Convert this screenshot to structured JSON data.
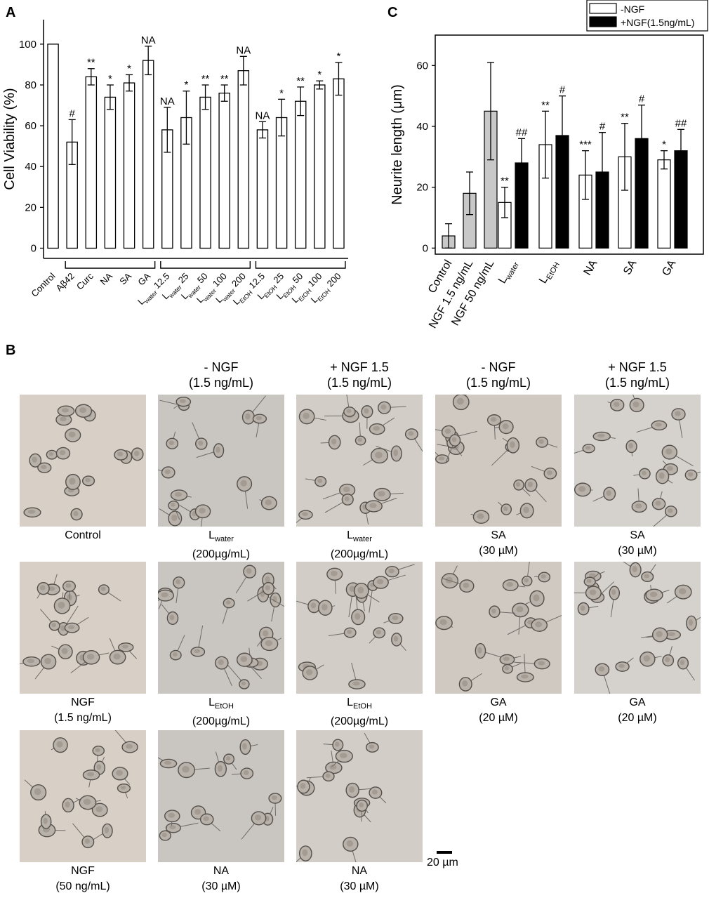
{
  "panels": {
    "a": "A",
    "b": "B",
    "c": "C"
  },
  "chart_data": [
    {
      "type": "bar",
      "panel": "A",
      "ylabel": "Cell Viability (%)",
      "ylim": [
        -5,
        112
      ],
      "yticks": [
        0,
        20,
        40,
        60,
        80,
        100
      ],
      "categories": [
        "Control",
        "Aβ42",
        "Curc",
        "NA",
        "SA",
        "GA",
        "Lwater 12.5",
        "Lwater 25",
        "Lwater 50",
        "Lwater 100",
        "Lwater 200",
        "LEtOH 12.5",
        "LEtOH 25",
        "LEtOH 50",
        "LEtOH 100",
        "LEtOH 200"
      ],
      "tick_labels": [
        {
          "main": "Control",
          "sub": "",
          "tail": ""
        },
        {
          "main": "Aβ42",
          "sub": "",
          "tail": ""
        },
        {
          "main": "Curc",
          "sub": "",
          "tail": ""
        },
        {
          "main": "NA",
          "sub": "",
          "tail": ""
        },
        {
          "main": "SA",
          "sub": "",
          "tail": ""
        },
        {
          "main": "GA",
          "sub": "",
          "tail": ""
        },
        {
          "main": "L",
          "sub": "water",
          "tail": " 12.5"
        },
        {
          "main": "L",
          "sub": "water",
          "tail": " 25"
        },
        {
          "main": "L",
          "sub": "water",
          "tail": " 50"
        },
        {
          "main": "L",
          "sub": "water",
          "tail": " 100"
        },
        {
          "main": "L",
          "sub": "water",
          "tail": " 200"
        },
        {
          "main": "L",
          "sub": "EtOH",
          "tail": " 12.5"
        },
        {
          "main": "L",
          "sub": "EtOH",
          "tail": " 25"
        },
        {
          "main": "L",
          "sub": "EtOH",
          "tail": " 50"
        },
        {
          "main": "L",
          "sub": "EtOH",
          "tail": " 100"
        },
        {
          "main": "L",
          "sub": "EtOH",
          "tail": " 200"
        }
      ],
      "values": [
        100,
        52,
        84,
        74,
        81,
        92,
        58,
        64,
        74,
        76,
        87,
        58,
        64,
        72,
        80,
        83
      ],
      "errors": [
        0,
        11,
        4,
        6,
        4,
        7,
        11,
        13,
        6,
        4,
        7,
        4,
        9,
        7,
        2,
        8
      ],
      "annotations": [
        "",
        "#",
        "**",
        "*",
        "*",
        "NA",
        "NA",
        "*",
        "**",
        "**",
        "NA",
        "NA",
        "*",
        "**",
        "*",
        "*"
      ],
      "brackets": [
        [
          1,
          5
        ],
        [
          6,
          10
        ],
        [
          11,
          15
        ]
      ],
      "bar_color": "#ffffff"
    },
    {
      "type": "bar",
      "panel": "C",
      "ylabel": "Neurite length (μm)",
      "ylim": [
        -2,
        70
      ],
      "yticks": [
        0,
        20,
        40,
        60
      ],
      "groups": [
        {
          "main": "Control",
          "sub": ""
        },
        {
          "main": "NGF 1.5  ng/mL",
          "sub": ""
        },
        {
          "main": "NGF 50 ng/mL",
          "sub": ""
        },
        {
          "main": "L",
          "sub": "water"
        },
        {
          "main": "L",
          "sub": "EtOH"
        },
        {
          "main": "NA",
          "sub": ""
        },
        {
          "main": "SA",
          "sub": ""
        },
        {
          "main": "GA",
          "sub": ""
        }
      ],
      "control_bars": [
        {
          "value": 4,
          "error": 4,
          "fill": "#c8c8c8"
        },
        {
          "value": 18,
          "error": 7,
          "fill": "#c8c8c8"
        },
        {
          "value": 45,
          "error": 16,
          "fill": "#c8c8c8"
        }
      ],
      "series": [
        {
          "name": "-NGF",
          "fill": "#ffffff",
          "values": [
            15,
            34,
            24,
            30,
            29
          ],
          "errors": [
            5,
            11,
            8,
            11,
            3
          ],
          "annotations": [
            "**",
            "**",
            "***",
            "**",
            "*"
          ]
        },
        {
          "name": "+NGF(1.5ng/mL)",
          "fill": "#000000",
          "values": [
            28,
            37,
            25,
            36,
            32
          ],
          "errors": [
            8,
            13,
            13,
            11,
            7
          ],
          "annotations": [
            "##",
            "#",
            "#",
            "#",
            "##"
          ]
        }
      ],
      "legend_position": "top-right"
    }
  ],
  "panel_b": {
    "col_headers": [
      {
        "line1": "- NGF",
        "line2": "(1.5 ng/mL)"
      },
      {
        "line1": "+ NGF 1.5",
        "line2": "(1.5 ng/mL)"
      },
      {
        "line1": "- NGF",
        "line2": "(1.5 ng/mL)"
      },
      {
        "line1": "+ NGF 1.5",
        "line2": "(1.5 ng/mL)"
      }
    ],
    "cells": [
      {
        "main": "Control",
        "sub": "",
        "line2": ""
      },
      {
        "main": "L",
        "sub": "water",
        "line2": "(200µg/mL)"
      },
      {
        "main": "L",
        "sub": "water",
        "line2": "(200µg/mL)"
      },
      {
        "main": "SA",
        "sub": "",
        "line2": "(30 µM)"
      },
      {
        "main": "SA",
        "sub": "",
        "line2": "(30 µM)"
      },
      {
        "main": "NGF",
        "sub": "",
        "line2": "(1.5 ng/mL)"
      },
      {
        "main": "L",
        "sub": "EtOH",
        "line2": "(200µg/mL)"
      },
      {
        "main": "L",
        "sub": "EtOH",
        "line2": "(200µg/mL)"
      },
      {
        "main": "GA",
        "sub": "",
        "line2": "(20 µM)"
      },
      {
        "main": "GA",
        "sub": "",
        "line2": "(20 µM)"
      },
      {
        "main": "NGF",
        "sub": "",
        "line2": "(50 ng/mL)"
      },
      {
        "main": "NA",
        "sub": "",
        "line2": "(30 µM)"
      },
      {
        "main": "NA",
        "sub": "",
        "line2": "(30 µM)"
      }
    ],
    "scale_bar_label": "20 µm"
  }
}
